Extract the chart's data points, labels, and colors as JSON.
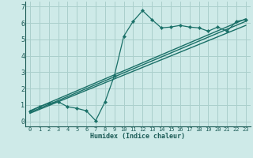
{
  "xlabel": "Humidex (Indice chaleur)",
  "bg_color": "#ceeae8",
  "grid_color": "#aacfcc",
  "line_color": "#1a7068",
  "xlim": [
    -0.5,
    23.5
  ],
  "ylim": [
    -0.3,
    7.3
  ],
  "yticks": [
    0,
    1,
    2,
    3,
    4,
    5,
    6,
    7
  ],
  "xticks": [
    0,
    1,
    2,
    3,
    4,
    5,
    6,
    7,
    8,
    9,
    10,
    11,
    12,
    13,
    14,
    15,
    16,
    17,
    18,
    19,
    20,
    21,
    22,
    23
  ],
  "line1_x": [
    0,
    1,
    2,
    3,
    4,
    5,
    6,
    7,
    8,
    9,
    10,
    11,
    12,
    13,
    14,
    15,
    16,
    17,
    18,
    19,
    20,
    21,
    22,
    23
  ],
  "line1_y": [
    0.6,
    0.9,
    1.1,
    1.2,
    0.9,
    0.8,
    0.65,
    0.05,
    1.2,
    2.8,
    5.2,
    6.1,
    6.75,
    6.2,
    5.7,
    5.75,
    5.85,
    5.75,
    5.7,
    5.5,
    5.75,
    5.5,
    6.1,
    6.2
  ],
  "line2_x": [
    0,
    23
  ],
  "line2_y": [
    0.5,
    5.85
  ],
  "line3_x": [
    0,
    23
  ],
  "line3_y": [
    0.55,
    6.1
  ],
  "line4_x": [
    0,
    23
  ],
  "line4_y": [
    0.65,
    6.25
  ]
}
